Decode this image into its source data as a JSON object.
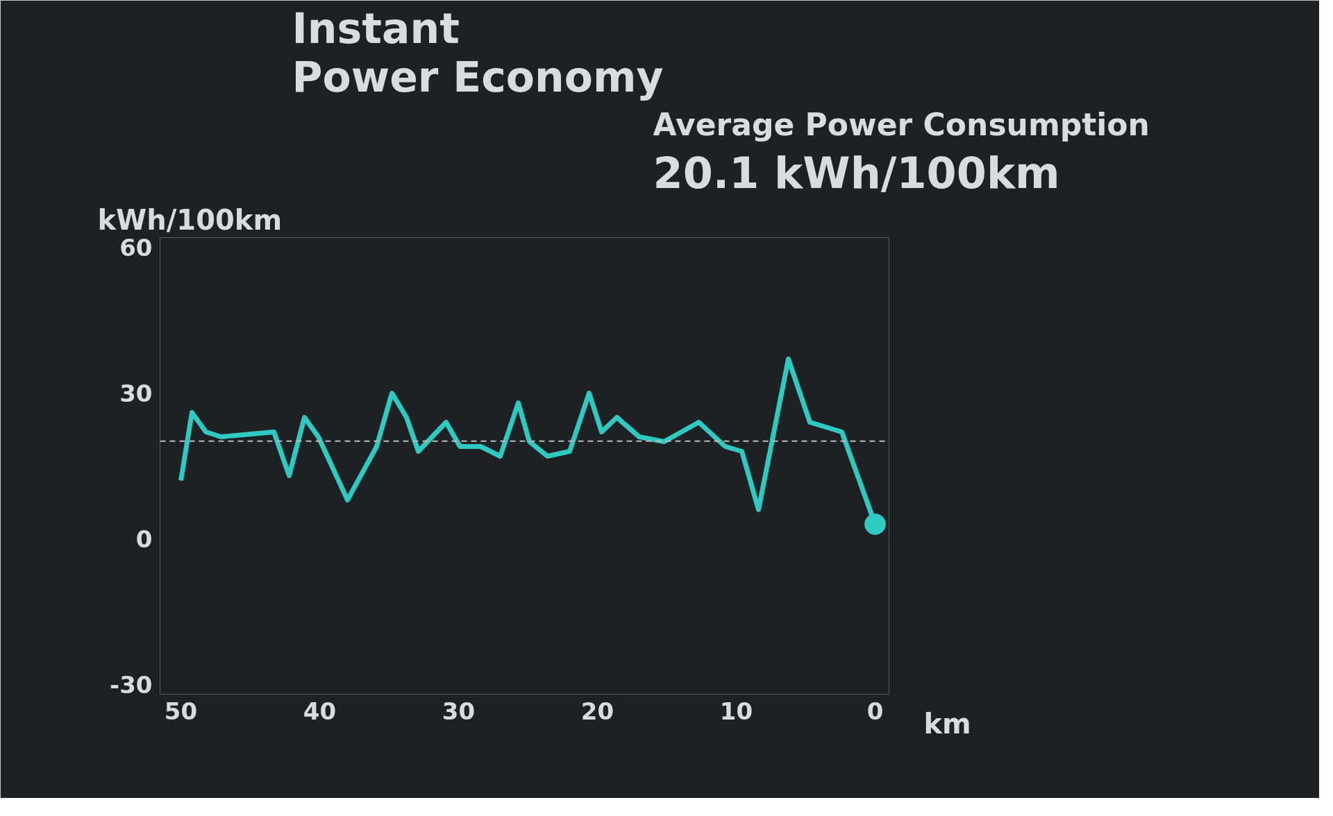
{
  "chart_data": {
    "type": "line",
    "title": "Instant\nPower Economy",
    "ylabel": "kWh/100km",
    "xlabel": "km",
    "annotations": [
      "Average Power Consumption",
      "20.1 kWh/100km"
    ],
    "xlim": [
      51.5,
      -1
    ],
    "ylim": [
      -32,
      62
    ],
    "xticks": [
      50,
      40,
      30,
      20,
      10,
      0
    ],
    "yticks": [
      60,
      30,
      0,
      -30
    ],
    "grid": false,
    "marker": "none",
    "line_style": "solid",
    "ref_lines": [
      {
        "axis": "y",
        "value": 20.1,
        "color": "#b8bcbc",
        "line_style": "dashed"
      }
    ],
    "series": [
      {
        "color": "#2ec9c0",
        "x": [
          50,
          49.2,
          48.2,
          47.1,
          43.3,
          42.2,
          41.1,
          40.1,
          38,
          35.9,
          34.8,
          33.75,
          32.9,
          30.9,
          29.9,
          28.4,
          27,
          25.7,
          24.9,
          23.6,
          22,
          20.6,
          19.7,
          18.6,
          17,
          15.2,
          12.7,
          10.8,
          9.6,
          8.4,
          6.25,
          4.7,
          2.4,
          0
        ],
        "values": [
          12,
          26,
          22,
          21,
          22,
          13,
          25,
          21,
          8,
          19,
          30,
          25,
          18,
          24,
          19,
          19,
          17,
          28,
          20,
          17,
          18,
          30,
          22,
          25,
          21,
          20,
          24,
          19,
          18,
          6,
          37,
          24,
          22,
          3
        ]
      },
      {
        "type": "scatter",
        "marker": "circle",
        "color": "#2ec9c0",
        "x": [
          0
        ],
        "values": [
          3
        ]
      }
    ]
  }
}
